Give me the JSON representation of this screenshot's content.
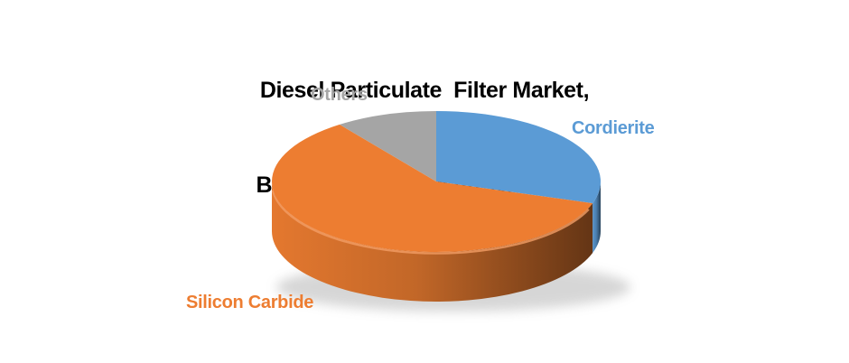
{
  "title": {
    "line1": "Diesel Particulate  Filter Market,",
    "line2": "By Subdtrate Type (In %) In 2020"
  },
  "chart_data": {
    "type": "pie",
    "style": "3d",
    "title": "Diesel Particulate Filter Market, By Subdtrate Type (In %) In 2020",
    "categories": [
      "Cordierite",
      "Silicon Carbide",
      "Others"
    ],
    "values": [
      30,
      60,
      10
    ],
    "unit": "%",
    "year": "2020",
    "start_angle_deg": 0,
    "direction": "clockwise",
    "colors": [
      "#5B9BD5",
      "#ED7D31",
      "#A5A5A5"
    ],
    "label_colors": [
      "#5B9BD5",
      "#ED7D31",
      "#A6A6A6"
    ],
    "title_color": "#000000",
    "background": "#FFFFFF",
    "legend_position": "labels-around-pie",
    "grid": "off"
  }
}
